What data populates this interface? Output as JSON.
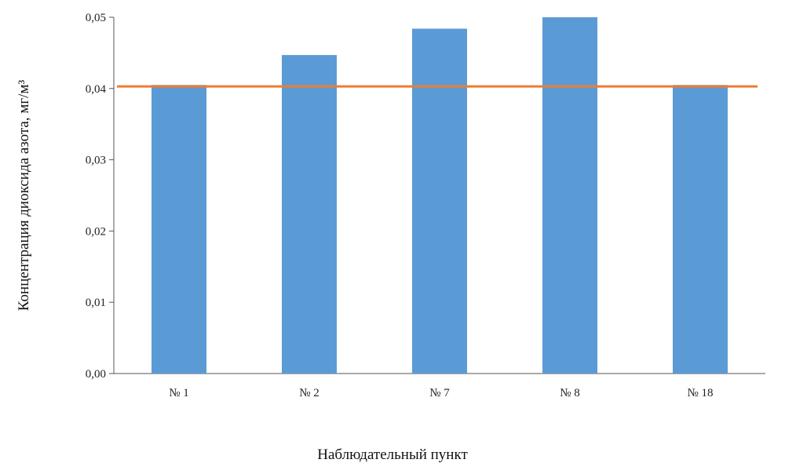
{
  "chart_data": {
    "type": "bar",
    "categories": [
      "№ 1",
      "№ 2",
      "№ 7",
      "№ 8",
      "№ 18"
    ],
    "values": [
      0.0405,
      0.0447,
      0.0484,
      0.05,
      0.0405
    ],
    "reference_line": {
      "value": 0.0403,
      "color": "#ed7d31"
    },
    "xlabel": "Наблюдательный пункт",
    "ylabel": "Концентрация диоксида азота, мг/м³",
    "ylim": [
      0,
      0.05
    ],
    "yticks": [
      "0,00",
      "0,01",
      "0,02",
      "0,03",
      "0,04",
      "0,05"
    ],
    "grid": false,
    "legend": "none",
    "colors": {
      "bar": "#5b9bd5",
      "line": "#ed7d31",
      "axis": "#555555"
    }
  }
}
